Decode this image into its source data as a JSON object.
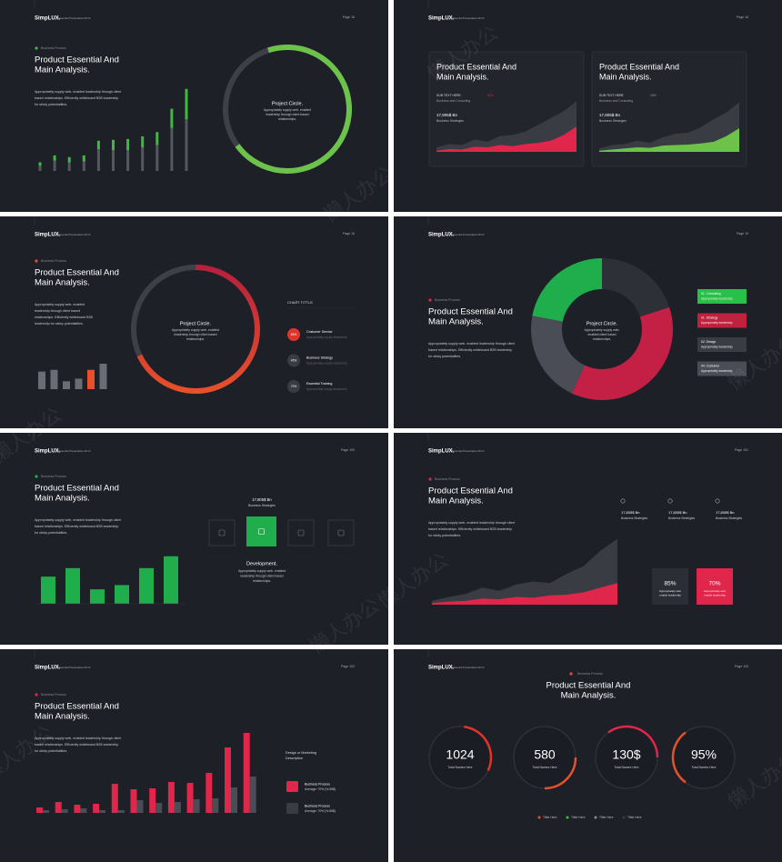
{
  "watermark": "懒人办公",
  "slides": [
    {
      "brand": "SimpLUX.",
      "subtitle": "Essential Presentation KD sf",
      "page": "Page 15",
      "tag": "Business Process",
      "title": [
        "Product Essential And",
        "Main Analysis."
      ],
      "body": [
        "Appropriately supply web- enabled leadership through client",
        "based relationships. Efficiently whiteboard B2B leadership",
        "for sticky potentialities."
      ],
      "chart": {
        "type": "bar",
        "stacked": true,
        "ylim": [
          0,
          100
        ],
        "series": [
          {
            "color": "#55585f",
            "values": [
              6,
              12,
              10,
              11,
              25,
              24,
              24,
              27,
              30,
              50,
              60
            ]
          },
          {
            "color": "#3dbb3d",
            "values": [
              4,
              6,
              6,
              7,
              10,
              12,
              13,
              13,
              15,
              22,
              35
            ]
          }
        ]
      },
      "ring": {
        "type": "ring",
        "value": 70,
        "colors": [
          "#6cc24a",
          "#5db83e"
        ],
        "title": "Project Circle.",
        "body": [
          "Appropriately supply web- enabled",
          "leadership through client based",
          "relationships."
        ]
      }
    },
    {
      "brand": "SimpLUX.",
      "subtitle": "Essential Presentation KD sf",
      "page": "Page 16",
      "cards": [
        {
          "title": [
            "Product Essential And",
            "Main Analysis."
          ],
          "sub": "SUB TEXT HERE",
          "sub_value": "41%",
          "sub_caption": "Business and Consulting",
          "stat": "17,805$ Bn",
          "stat_caption": "Business Strategies",
          "chart": {
            "type": "area",
            "ylim": [
              0,
              100
            ],
            "series": [
              {
                "color": "#3a3c44",
                "values": [
                  8,
                  14,
                  12,
                  22,
                  18,
                  28,
                  30,
                  36,
                  48,
                  60,
                  72,
                  90
                ]
              },
              {
                "color": "#e0264a",
                "values": [
                  2,
                  5,
                  4,
                  9,
                  8,
                  12,
                  10,
                  14,
                  16,
                  20,
                  30,
                  45
                ]
              }
            ]
          }
        },
        {
          "title": [
            "Product Essential And",
            "Main Analysis."
          ],
          "sub": "SUB TEXT HERE",
          "sub_value": "19%",
          "sub_caption": "Business and Consulting",
          "stat": "17,805$ Bn",
          "stat_caption": "Business Strategies",
          "chart": {
            "type": "area",
            "ylim": [
              0,
              100
            ],
            "series": [
              {
                "color": "#3a3c44",
                "values": [
                  6,
                  12,
                  14,
                  20,
                  16,
                  26,
                  32,
                  34,
                  44,
                  58,
                  70,
                  88
                ]
              },
              {
                "color": "#6cc24a",
                "values": [
                  2,
                  4,
                  6,
                  8,
                  7,
                  11,
                  12,
                  13,
                  15,
                  18,
                  28,
                  42
                ]
              }
            ]
          }
        }
      ]
    },
    {
      "brand": "SimpLUX.",
      "subtitle": "Essential Presentation KD sf",
      "page": "Page 18",
      "tag": "Business Process",
      "title": [
        "Product Essential And",
        "Main Analysis."
      ],
      "body": [
        "Appropriately supply web- enabled",
        "leadership through client based",
        "relationships. Efficiently whiteboard B2B",
        "leadership for sticky potentialities."
      ],
      "chart": {
        "type": "bar",
        "ylim": [
          0,
          30
        ],
        "colors": [
          "#6a6d75",
          "#6a6d75",
          "#6a6d75",
          "#6a6d75",
          "#e8502a",
          "#6a6d75"
        ],
        "values": [
          20,
          22,
          9,
          12,
          22,
          29
        ]
      },
      "ring": {
        "type": "ring",
        "value": 68,
        "colors": [
          "#e8502a",
          "#b81f3c"
        ],
        "title": "Project Circle.",
        "body": [
          "Appropriately supply web- enabled",
          "leadership through client based",
          "relationships."
        ]
      },
      "chart_title": "CHART TITTLE",
      "items": [
        {
          "value": "65%",
          "name": "Costumer Service",
          "note": "Appropriately supply leadership",
          "color": "#e0352b"
        },
        {
          "value": "45%",
          "name": "Business Strategy",
          "note": "Appropriately supply leadership",
          "color": "#3a3c44"
        },
        {
          "value": "70%",
          "name": "Essential Training",
          "note": "Appropriately supply leadership",
          "color": "#3a3c44"
        }
      ]
    },
    {
      "brand": "SimpLUX.",
      "subtitle": "Essential Presentation KD sf",
      "page": "Page 19",
      "tag": "Business Process",
      "title": [
        "Product Essential And",
        "Main Analysis."
      ],
      "body": [
        "Appropriately supply web- enabled leadership through client",
        "based relationships. Efficiently whiteboard B2B leadership",
        "for sticky potentialities."
      ],
      "donut": {
        "type": "donut",
        "values": [
          22,
          20,
          37,
          21
        ],
        "colors": [
          "#1fae4b",
          "#2e3038",
          "#c41f45",
          "#4a4d56"
        ],
        "title": "Project Circle.",
        "body": [
          "Appropriately supply web-",
          "enabled client based",
          "relationships."
        ]
      },
      "legend": [
        {
          "label": "01. Consulting",
          "note": "Appropriately leadership.",
          "color": "#27c04a"
        },
        {
          "label": "01. Strategy",
          "note": "Appropriately leadership.",
          "color": "#c0213f"
        },
        {
          "label": "02. Design",
          "note": "Appropriately leadership.",
          "color": "#3a3c44"
        },
        {
          "label": "04. Costumer",
          "note": "Appropriately leadership.",
          "color": "#4a4d56"
        }
      ]
    },
    {
      "brand": "SimpLUX.",
      "subtitle": "Essential Presentation KD sf",
      "page": "Page 100",
      "tag": "Business Process",
      "title": [
        "Product Essential And",
        "Main Analysis."
      ],
      "body": [
        "Appropriately supply web- enabled leadership through client",
        "based relationships. Efficiently whiteboard B2B leadership",
        "for sticky potentialities."
      ],
      "chart": {
        "type": "bar",
        "ylim": [
          0,
          60
        ],
        "color": "#1fae4b",
        "values": [
          32,
          42,
          17,
          22,
          42,
          56
        ]
      },
      "stat": "17,805$ Bn",
      "stat_caption": "Business Strategies",
      "heading": "Development.",
      "heading_body": [
        "Appropriately supply web- enabled",
        "leadership through client based",
        "relationships."
      ]
    },
    {
      "brand": "SimpLUX.",
      "subtitle": "Essential Presentation KD sf",
      "page": "Page 101",
      "tag": "Business Process",
      "title": [
        "Product Essential And",
        "Main Analysis."
      ],
      "body": [
        "Appropriately supply web- enabled leadership through client",
        "based relationships. Efficiently whiteboard B2B leadership",
        "for sticky potentialities."
      ],
      "stats": [
        {
          "value": "17,805$ Bn",
          "caption": "Business Strategies"
        },
        {
          "value": "17,805$ Bn",
          "caption": "Business Strategies"
        },
        {
          "value": "17,805$ Bn",
          "caption": "Business Strategies"
        }
      ],
      "chart": {
        "type": "area",
        "ylim": [
          0,
          100
        ],
        "series": [
          {
            "color": "#3a3c44",
            "values": [
              5,
              10,
              14,
              22,
              18,
              26,
              30,
              28,
              40,
              50,
              70,
              85
            ]
          },
          {
            "color": "#e0264a",
            "values": [
              2,
              4,
              5,
              8,
              7,
              10,
              9,
              12,
              13,
              16,
              22,
              28
            ]
          }
        ]
      },
      "boxes": [
        {
          "value": "85%",
          "text": [
            "Appropriately web",
            "enable leadership"
          ],
          "color": "#2c2e36"
        },
        {
          "value": "70%",
          "text": [
            "Appropriately web",
            "enable leadership"
          ],
          "color": "#e0264a"
        }
      ]
    },
    {
      "brand": "SimpLUX.",
      "subtitle": "Essential Presentation KD sf",
      "page": "Page 102",
      "tag": "Business Process",
      "title": [
        "Product Essential And",
        "Main Analysis."
      ],
      "body": [
        "Appropriately supply web- enabled leadership through client",
        "based relationships. Efficiently whiteboard B2B leadership",
        "for sticky potentialities."
      ],
      "chart": {
        "type": "grouped-bar",
        "ylim": [
          0,
          100
        ],
        "series": [
          {
            "color": "#e0264a",
            "values": [
              6,
              12,
              9,
              10,
              32,
              26,
              27,
              34,
              33,
              44,
              72,
              88
            ]
          },
          {
            "color": "#4a4d56",
            "values": [
              3,
              4,
              5,
              3,
              3,
              14,
              11,
              12,
              15,
              16,
              28,
              40
            ]
          }
        ]
      },
      "note": [
        "Design or Marketing",
        "Description"
      ],
      "items": [
        {
          "name": "Business Process",
          "note": "Average: 70% (%,55$)",
          "color": "#e0264a"
        },
        {
          "name": "Business Process",
          "note": "Average: 70% (%,55$)",
          "color": "#3a3c44"
        }
      ]
    },
    {
      "brand": "SimpLUX.",
      "subtitle": "Essential Presentation KD sf",
      "page": "Page 103",
      "tag": "Business Process",
      "title": [
        "Product Essential And",
        "Main Analysis."
      ],
      "gauges": [
        {
          "value": "1024",
          "caption": "Total Names Here",
          "share": 30,
          "color": "#e0352b"
        },
        {
          "value": "580",
          "caption": "Total Names Here",
          "share": 25,
          "color": "#e8502a"
        },
        {
          "value": "130$",
          "caption": "Total Names Here",
          "share": 35,
          "color": "#e0264a"
        },
        {
          "value": "95%",
          "caption": "Total Names Here",
          "share": 30,
          "color": "#e8502a"
        }
      ],
      "legend": [
        {
          "label": "Tittle Here",
          "color": "#e8502a"
        },
        {
          "label": "Tittle Here",
          "color": "#3dbb3d"
        },
        {
          "label": "Tittle Here",
          "color": "#8a8d95"
        },
        {
          "label": "Tittle Here",
          "color": "#3a3c44"
        }
      ]
    }
  ]
}
